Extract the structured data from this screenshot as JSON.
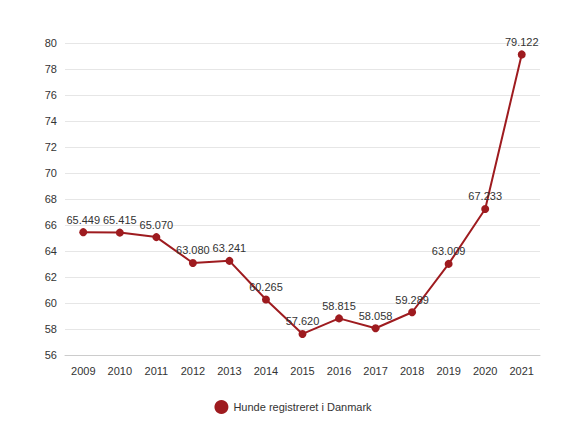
{
  "chart_data": {
    "type": "line",
    "categories": [
      "2009",
      "2010",
      "2011",
      "2012",
      "2013",
      "2014",
      "2015",
      "2016",
      "2017",
      "2018",
      "2019",
      "2020",
      "2021"
    ],
    "series": [
      {
        "name": "Hunde registreret i Danmark",
        "color": "#9e1b1f",
        "values": [
          65.449,
          65.415,
          65.07,
          63.08,
          63.241,
          60.265,
          57.62,
          58.815,
          58.058,
          59.289,
          63.009,
          67.233,
          79.122
        ],
        "value_labels": [
          "65.449",
          "65.415",
          "65.070",
          "63.080",
          "63.241",
          "60.265",
          "57.620",
          "58.815",
          "58.058",
          "59.289",
          "63.009",
          "67.233",
          "79.122"
        ],
        "marker": "circle"
      }
    ],
    "ylim": [
      56,
      80
    ],
    "yticks": [
      56,
      58,
      60,
      62,
      64,
      66,
      68,
      70,
      72,
      74,
      76,
      78,
      80
    ],
    "grid": true,
    "legend": "bottom",
    "data_labels": true
  }
}
